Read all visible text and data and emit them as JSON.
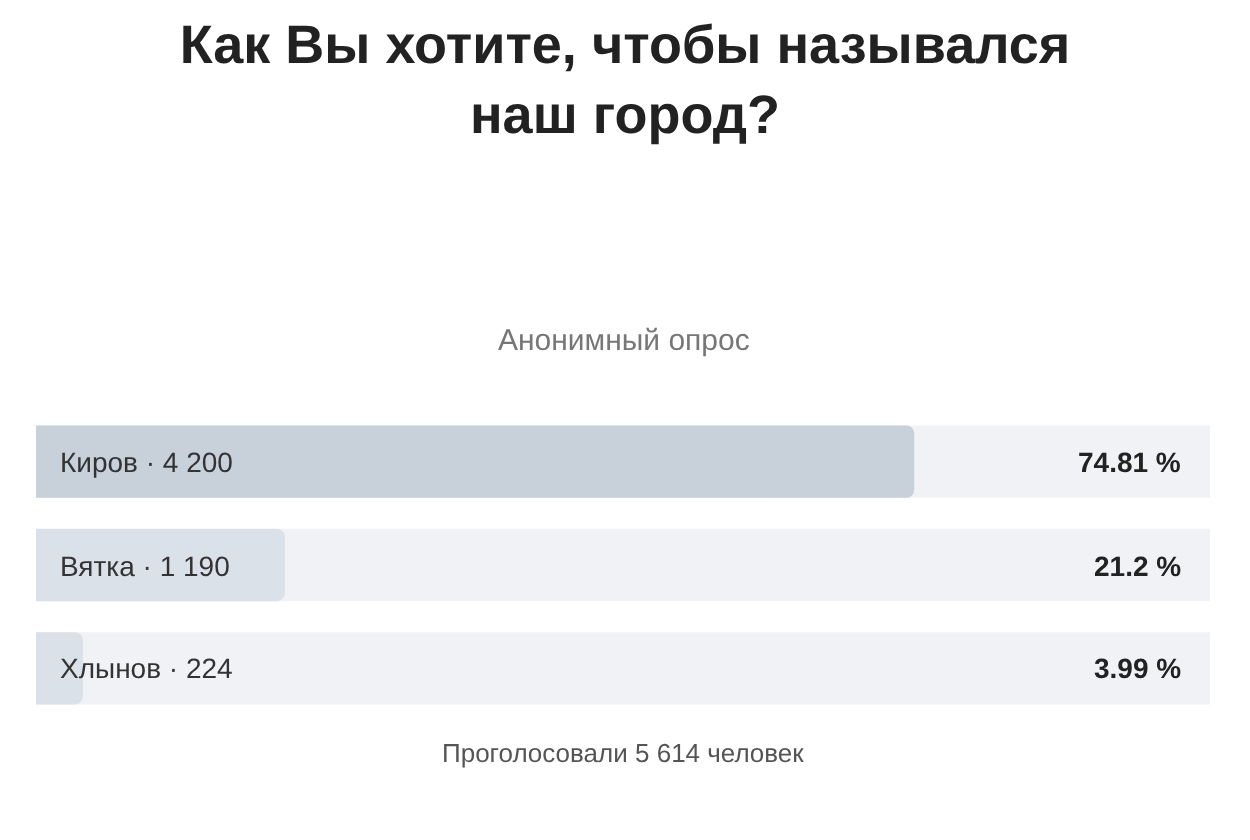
{
  "chart_data": {
    "type": "bar",
    "orientation": "horizontal",
    "title": "Как Вы хотите, чтобы назывался наш город?",
    "subtitle": "Анонимный опрос",
    "categories": [
      "Киров · 4 200",
      "Вятка · 1 190",
      "Хлынов · 224"
    ],
    "values": [
      74.81,
      21.2,
      3.99
    ],
    "value_labels": [
      "74.81 %",
      "21.2 %",
      "3.99 %"
    ],
    "colors": [
      "#c8d0da",
      "#dbe1e9",
      "#dbe1e9"
    ],
    "xlim": [
      0,
      100
    ],
    "tick_labels": false,
    "annotations": [
      "Проголосовали 5 614 человек"
    ]
  }
}
